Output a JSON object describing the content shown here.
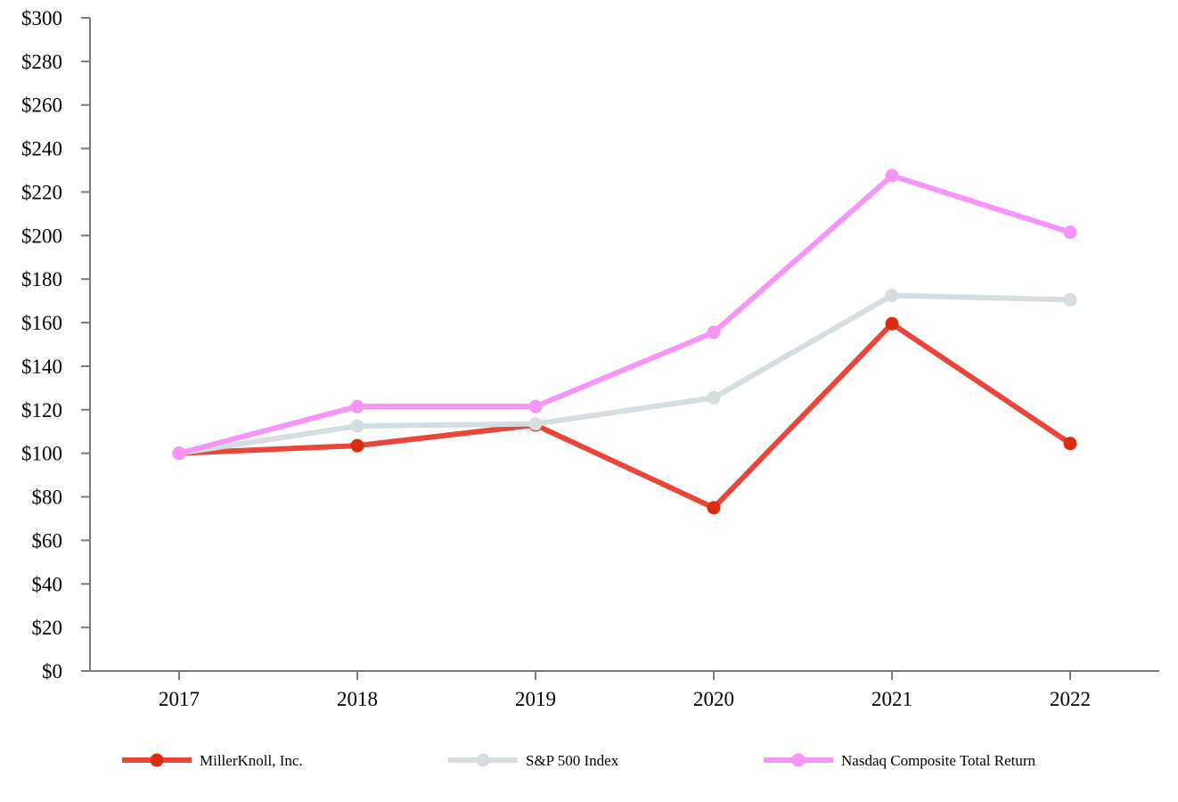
{
  "chart_data": {
    "type": "line",
    "title": "",
    "xlabel": "",
    "ylabel": "",
    "categories": [
      "2017",
      "2018",
      "2019",
      "2020",
      "2021",
      "2022"
    ],
    "ylim": [
      0,
      300
    ],
    "yticks": [
      0,
      20,
      40,
      60,
      80,
      100,
      120,
      140,
      160,
      180,
      200,
      220,
      240,
      260,
      280,
      300
    ],
    "ytick_labels": [
      "$0",
      "$20",
      "$40",
      "$60",
      "$80",
      "$100",
      "$120",
      "$140",
      "$160",
      "$180",
      "$200",
      "$220",
      "$240",
      "$260",
      "$280",
      "$300"
    ],
    "grid": false,
    "legend_position": "bottom",
    "series": [
      {
        "name": "MillerKnoll, Inc.",
        "color": "#e8463a",
        "marker_color": "#d92d10",
        "values": [
          100,
          103.5,
          113,
          75,
          159.5,
          104.5
        ]
      },
      {
        "name": "S&P 500 Index",
        "color": "#d5dde0",
        "marker_color": "#d5dde0",
        "values": [
          100,
          112.5,
          113.5,
          125.5,
          172.5,
          170.5
        ]
      },
      {
        "name": "Nasdaq Composite Total Return",
        "color": "#f795f7",
        "marker_color": "#f795f7",
        "values": [
          100,
          121.5,
          121.5,
          155.5,
          227.5,
          201.5
        ]
      }
    ]
  }
}
